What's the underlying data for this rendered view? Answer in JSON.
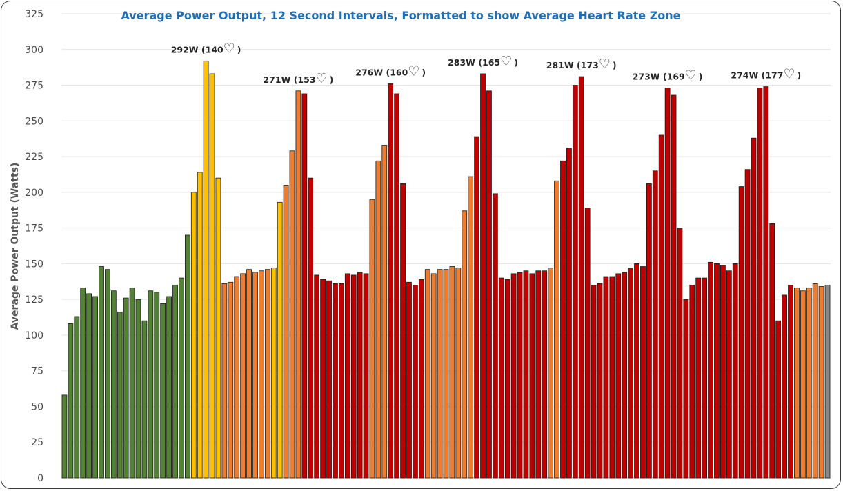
{
  "chart_data": {
    "type": "bar",
    "title": "Average Power Output, 12 Second Intervals, Formatted to show Average Heart Rate Zone",
    "ylabel": "Average Power Output (Watts)",
    "xlabel": "",
    "ylim": [
      0,
      325
    ],
    "yticks": [
      0,
      25,
      50,
      75,
      100,
      125,
      150,
      175,
      200,
      225,
      250,
      275,
      300,
      325
    ],
    "grid": true,
    "zone_colors": {
      "green": "#548235",
      "yellow": "#ffc000",
      "orange": "#ed7d31",
      "red": "#c00000"
    },
    "values": [
      58,
      108,
      113,
      133,
      129,
      127,
      148,
      146,
      131,
      116,
      126,
      133,
      125,
      110,
      131,
      130,
      122,
      127,
      135,
      140,
      170,
      200,
      214,
      292,
      283,
      210,
      136,
      137,
      141,
      143,
      146,
      144,
      145,
      146,
      147,
      193,
      205,
      229,
      271,
      269,
      210,
      142,
      139,
      138,
      136,
      136,
      143,
      142,
      144,
      143,
      195,
      222,
      233,
      276,
      269,
      206,
      137,
      135,
      139,
      146,
      143,
      146,
      146,
      148,
      147,
      187,
      211,
      239,
      283,
      271,
      199,
      140,
      139,
      143,
      144,
      145,
      143,
      145,
      145,
      147,
      208,
      222,
      231,
      275,
      281,
      189,
      135,
      136,
      141,
      141,
      143,
      144,
      147,
      150,
      148,
      206,
      215,
      240,
      273,
      268,
      175,
      125,
      135,
      140,
      140,
      151,
      150,
      149,
      145,
      150,
      204,
      216,
      238,
      273,
      274,
      178,
      110,
      128,
      135,
      133,
      131,
      133,
      136,
      134,
      135
    ],
    "zones": [
      "green",
      "green",
      "green",
      "green",
      "green",
      "green",
      "green",
      "green",
      "green",
      "green",
      "green",
      "green",
      "green",
      "green",
      "green",
      "green",
      "green",
      "green",
      "green",
      "green",
      "green",
      "yellow",
      "yellow",
      "yellow",
      "yellow",
      "yellow",
      "orange",
      "orange",
      "orange",
      "orange",
      "orange",
      "orange",
      "orange",
      "orange",
      "yellow",
      "yellow",
      "orange",
      "orange",
      "orange",
      "red",
      "red",
      "red",
      "red",
      "red",
      "red",
      "red",
      "red",
      "red",
      "red",
      "red",
      "orange",
      "orange",
      "orange",
      "red",
      "red",
      "red",
      "red",
      "red",
      "red",
      "orange",
      "orange",
      "orange",
      "orange",
      "orange",
      "orange",
      "orange",
      "orange",
      "red",
      "red",
      "red",
      "red",
      "red",
      "red",
      "red",
      "red",
      "red",
      "red",
      "red",
      "red",
      "orange",
      "orange",
      "red",
      "red",
      "red",
      "red",
      "red",
      "red",
      "red",
      "red",
      "red",
      "red",
      "red",
      "red",
      "red",
      "red",
      "red",
      "red",
      "red",
      "red",
      "red",
      "red",
      "red",
      "red",
      "red",
      "red",
      "red",
      "red",
      "red",
      "red",
      "red",
      "red",
      "red",
      "red",
      "red",
      "red",
      "red",
      "red",
      "red",
      "red",
      "orange",
      "orange",
      "orange",
      "orange",
      "orange"
    ],
    "annotations": [
      {
        "index": 23,
        "text": "292W (140",
        "close": ")"
      },
      {
        "index": 38,
        "text": "271W (153",
        "close": ")"
      },
      {
        "index": 53,
        "text": "276W (160",
        "close": ")"
      },
      {
        "index": 68,
        "text": "283W (165",
        "close": ")"
      },
      {
        "index": 84,
        "text": "281W (173",
        "close": ")"
      },
      {
        "index": 98,
        "text": "273W (169",
        "close": ")"
      },
      {
        "index": 114,
        "text": "274W (177",
        "close": ")"
      }
    ]
  }
}
